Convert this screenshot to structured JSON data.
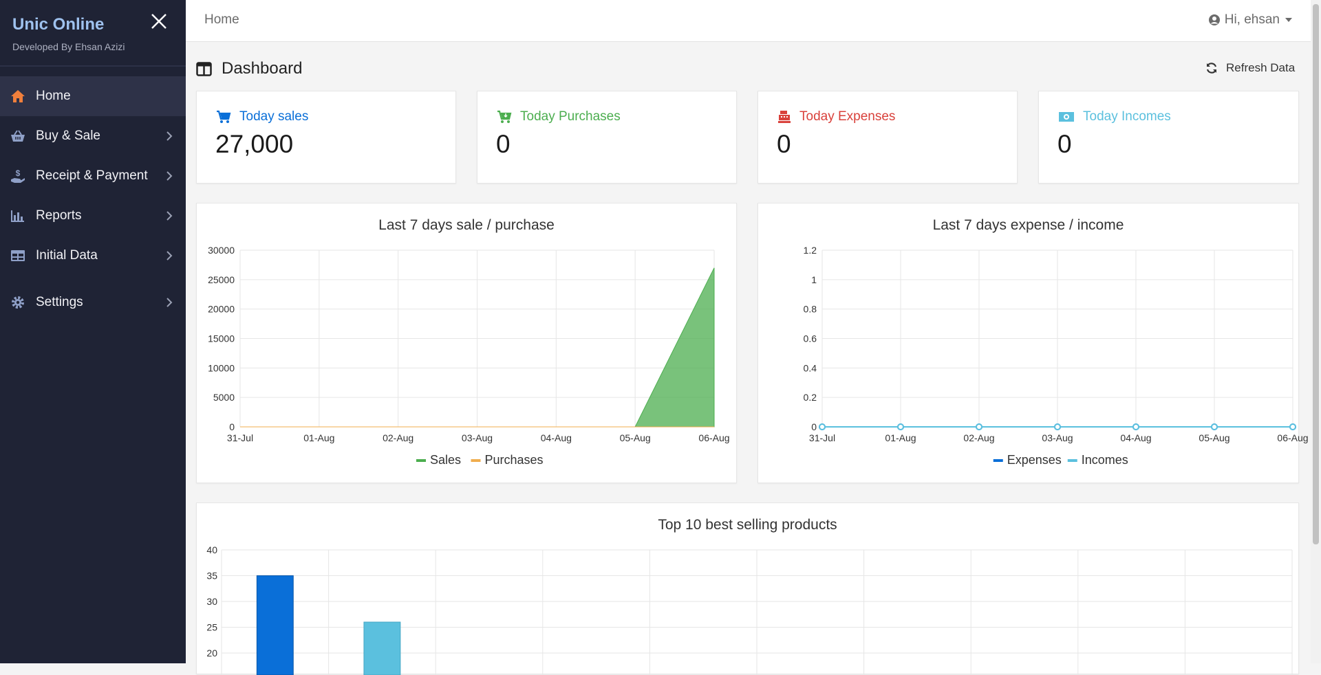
{
  "sidebar": {
    "brand_title": "Unic Online",
    "brand_subtitle": "Developed By Ehsan Azizi",
    "items": [
      {
        "label": "Home",
        "icon": "home-icon",
        "active": true
      },
      {
        "label": "Buy & Sale",
        "icon": "basket-icon"
      },
      {
        "label": "Receipt & Payment",
        "icon": "hand-dollar-icon"
      },
      {
        "label": "Reports",
        "icon": "bar-chart-icon"
      },
      {
        "label": "Initial Data",
        "icon": "table-icon"
      },
      {
        "label": "Settings",
        "icon": "gear-icon"
      }
    ]
  },
  "topbar": {
    "breadcrumb": "Home",
    "user": "Hi, ehsan"
  },
  "page": {
    "title": "Dashboard",
    "refresh_label": "Refresh Data"
  },
  "stats": [
    {
      "label": "Today sales",
      "value": "27,000",
      "color": "#0a6fd8",
      "icon": "cart-icon"
    },
    {
      "label": "Today Purchases",
      "value": "0",
      "color": "#4cae4f",
      "icon": "cart-download-icon"
    },
    {
      "label": "Today Expenses",
      "value": "0",
      "color": "#d9413b",
      "icon": "cash-register-icon"
    },
    {
      "label": "Today Incomes",
      "value": "0",
      "color": "#5bc0de",
      "icon": "money-bill-icon"
    }
  ],
  "chart_data": [
    {
      "type": "area",
      "title": "Last 7 days sale / purchase",
      "categories": [
        "31-Jul",
        "01-Aug",
        "02-Aug",
        "03-Aug",
        "04-Aug",
        "05-Aug",
        "06-Aug"
      ],
      "ylim": [
        0,
        30000
      ],
      "yticks": [
        "0",
        "5000",
        "10000",
        "15000",
        "20000",
        "25000",
        "30000"
      ],
      "grid": true,
      "legend_position": "bottom",
      "series": [
        {
          "name": "Sales",
          "values": [
            0,
            0,
            0,
            0,
            0,
            0,
            27000
          ],
          "color": "#4cae4f"
        },
        {
          "name": "Purchases",
          "values": [
            0,
            0,
            0,
            0,
            0,
            0,
            0
          ],
          "color": "#f0ad4e"
        }
      ]
    },
    {
      "type": "line",
      "title": "Last 7 days expense / income",
      "categories": [
        "31-Jul",
        "01-Aug",
        "02-Aug",
        "03-Aug",
        "04-Aug",
        "05-Aug",
        "06-Aug"
      ],
      "ylim": [
        0,
        1.2
      ],
      "yticks": [
        "0",
        "0.2",
        "0.4",
        "0.6",
        "0.8",
        "1",
        "1.2"
      ],
      "grid": true,
      "legend_position": "bottom",
      "series": [
        {
          "name": "Expenses",
          "values": [
            0,
            0,
            0,
            0,
            0,
            0,
            0
          ],
          "color": "#0a6fd8"
        },
        {
          "name": "Incomes",
          "values": [
            0,
            0,
            0,
            0,
            0,
            0,
            0
          ],
          "color": "#5bc0de"
        }
      ]
    },
    {
      "type": "bar",
      "title": "Top 10 best selling products",
      "ylim": [
        0,
        40
      ],
      "yticks_visible": [
        "20",
        "25",
        "30",
        "35",
        "40"
      ],
      "grid": true,
      "values": [
        35,
        26
      ],
      "colors": [
        "#0a6fd8",
        "#5bc0de"
      ]
    }
  ]
}
